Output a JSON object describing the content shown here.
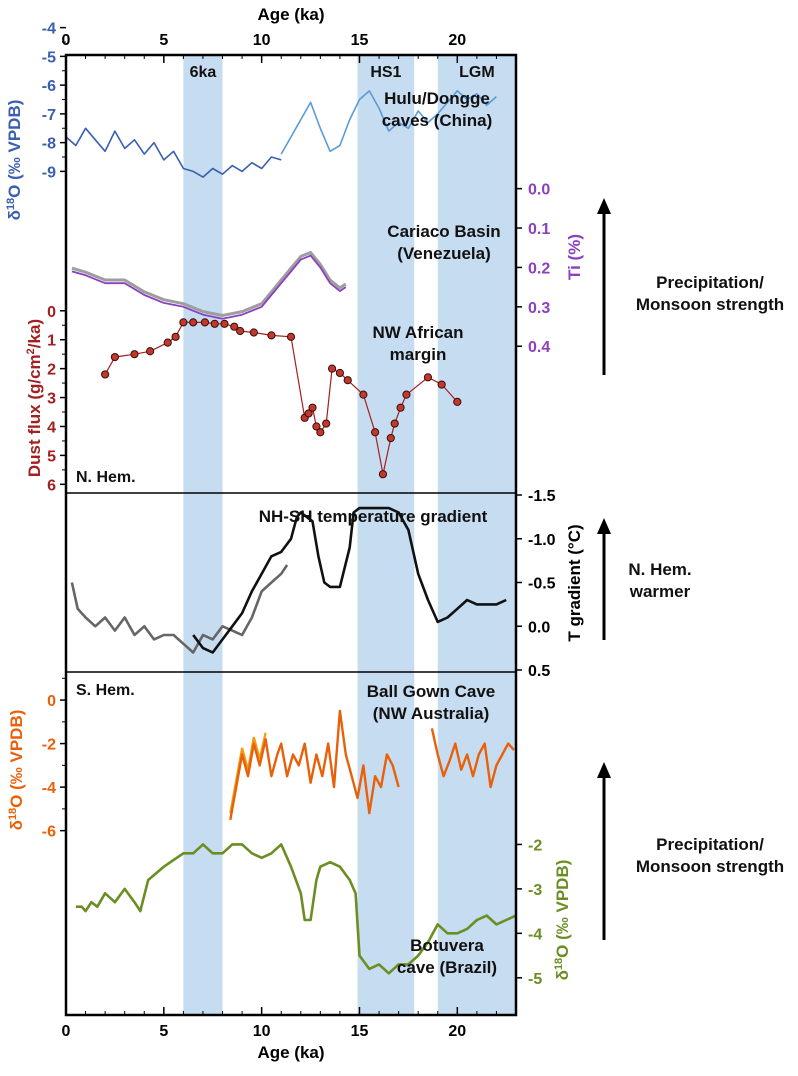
{
  "chart_data": {
    "type": "line",
    "x_axis": {
      "label": "Age (ka)",
      "range": [
        0,
        23
      ],
      "ticks": [
        0,
        5,
        10,
        15,
        20
      ],
      "minor_ticks": [
        1,
        2,
        3,
        4,
        6,
        7,
        8,
        9,
        11,
        12,
        13,
        14,
        16,
        17,
        18,
        19,
        21,
        22
      ]
    },
    "shaded_intervals": [
      {
        "label": "6ka",
        "range": [
          6,
          8
        ]
      },
      {
        "label": "HS1",
        "range": [
          14.9,
          17.8
        ]
      },
      {
        "label": "LGM",
        "range": [
          19,
          23
        ]
      }
    ],
    "panel_labels": {
      "north": "N. Hem.",
      "south": "S. Hem."
    },
    "panels": [
      {
        "id": "hulu",
        "label_lines": [
          "Hulu/Dongge",
          "caves (China)"
        ],
        "axis_label": "δ18O (‰ VPDB)",
        "axis_side": "left",
        "range": [
          -6.1,
          -9.3
        ],
        "ticks": [
          -9,
          -8,
          -7,
          -6,
          -5,
          -4
        ],
        "colors": [
          "#3a5fb0",
          "#5b9bd5"
        ],
        "series": [
          {
            "name": "Dongge",
            "x": [
              0,
              0.5,
              1,
              1.5,
              2,
              2.5,
              3,
              3.5,
              4,
              4.5,
              5,
              5.5,
              6,
              6.5,
              7,
              7.5,
              8,
              8.5,
              9,
              9.5,
              10,
              10.5,
              11
            ],
            "y": [
              -7.8,
              -8.1,
              -7.5,
              -7.9,
              -8.3,
              -7.6,
              -8.2,
              -7.9,
              -8.4,
              -8.0,
              -8.6,
              -8.3,
              -8.9,
              -9.0,
              -9.2,
              -8.9,
              -9.1,
              -8.8,
              -9.0,
              -8.7,
              -8.9,
              -8.5,
              -8.6
            ]
          },
          {
            "name": "Hulu",
            "x": [
              11,
              11.5,
              12,
              12.5,
              13,
              13.5,
              14,
              14.5,
              15,
              15.5,
              16,
              16.5,
              17,
              17.5,
              18,
              18.5,
              19,
              19.5,
              20,
              20.5,
              21,
              21.5,
              22
            ],
            "y": [
              -8.4,
              -7.8,
              -7.2,
              -6.6,
              -7.5,
              -8.3,
              -8.1,
              -7.2,
              -6.5,
              -6.2,
              -6.8,
              -7.6,
              -7.3,
              -7.5,
              -6.9,
              -7.3,
              -7.0,
              -6.6,
              -6.2,
              -6.5,
              -6.3,
              -6.7,
              -6.4
            ]
          }
        ]
      },
      {
        "id": "cariaco",
        "label_lines": [
          "Cariaco Basin",
          "(Venezuela)"
        ],
        "axis_label": "Ti (%)",
        "axis_side": "right",
        "range": [
          -0.06,
          0.44
        ],
        "ticks": [
          0.0,
          0.1,
          0.2,
          0.3,
          0.4
        ],
        "colors": [
          "#8c3fbf",
          "#9e9e9e"
        ],
        "series": [
          {
            "name": "Ti",
            "x": [
              0.3,
              1,
              2,
              3,
              4,
              5,
              6,
              7,
              8,
              9,
              10,
              10.5,
              11,
              11.5,
              12,
              12.5,
              13,
              13.5,
              14,
              14.3
            ],
            "y": [
              0.21,
              0.22,
              0.24,
              0.24,
              0.27,
              0.29,
              0.3,
              0.32,
              0.33,
              0.32,
              0.3,
              0.27,
              0.24,
              0.21,
              0.18,
              0.17,
              0.2,
              0.24,
              0.26,
              0.25
            ]
          }
        ]
      },
      {
        "id": "nwafrica",
        "label_lines": [
          "NW African",
          "margin"
        ],
        "axis_label": "Dust flux (g/cm2/ka)",
        "axis_side": "left",
        "range": [
          -0.2,
          6.3
        ],
        "ticks": [
          0,
          1,
          2,
          3,
          4,
          5,
          6
        ],
        "colors": [
          "#c0392b",
          "#a32020"
        ],
        "series": [
          {
            "name": "Dust flux",
            "x": [
              2.0,
              2.5,
              3.5,
              4.3,
              5.2,
              5.6,
              6.0,
              6.5,
              7.1,
              7.6,
              8.1,
              8.6,
              8.9,
              9.6,
              10.5,
              11.5,
              12.2,
              12.4,
              12.6,
              12.8,
              13.0,
              13.3,
              13.6,
              14.0,
              14.4,
              15.2,
              15.8,
              16.2,
              16.6,
              16.8,
              17.1,
              17.4,
              18.5,
              19.2,
              20.0
            ],
            "y": [
              2.2,
              1.6,
              1.5,
              1.4,
              1.1,
              0.9,
              0.4,
              0.4,
              0.4,
              0.45,
              0.45,
              0.55,
              0.7,
              0.75,
              0.85,
              0.9,
              3.7,
              3.55,
              3.35,
              4.0,
              4.2,
              3.9,
              2.0,
              2.15,
              2.4,
              2.9,
              4.2,
              5.65,
              4.4,
              3.9,
              3.35,
              2.9,
              2.3,
              2.55,
              3.15
            ]
          }
        ]
      },
      {
        "id": "gradient",
        "label_lines": [
          "NH-SH temperature gradient"
        ],
        "axis_label": "T gradient (°C)",
        "axis_side": "right",
        "range": [
          -1.5,
          0.5
        ],
        "ticks": [
          0.5,
          0.0,
          -0.5,
          -1.0,
          -1.5
        ],
        "colors": [
          "#666666",
          "#111111"
        ],
        "series": [
          {
            "name": "record 1",
            "x": [
              0.3,
              0.6,
              1.0,
              1.5,
              2.0,
              2.5,
              3.0,
              3.5,
              4.0,
              4.5,
              5.0,
              5.5,
              6.0,
              6.5,
              7.0,
              7.5,
              8.0,
              8.5,
              9.0,
              9.5,
              10.0,
              10.5,
              11.0,
              11.3
            ],
            "y": [
              -0.5,
              -0.2,
              -0.1,
              0.0,
              -0.1,
              0.05,
              -0.1,
              0.1,
              0.0,
              0.15,
              0.1,
              0.1,
              0.2,
              0.3,
              0.1,
              0.15,
              0.0,
              0.05,
              0.1,
              -0.1,
              -0.4,
              -0.5,
              -0.6,
              -0.7
            ]
          },
          {
            "name": "record 2",
            "x": [
              6.5,
              7.0,
              7.5,
              8.0,
              8.5,
              9.0,
              9.5,
              10.0,
              10.5,
              11.0,
              11.5,
              11.8,
              12.0,
              12.3,
              12.6,
              12.9,
              13.2,
              13.5,
              14.0,
              14.5,
              14.7,
              15.0,
              15.5,
              16.0,
              16.5,
              17.0,
              17.5,
              18.0,
              18.5,
              19.0,
              19.5,
              20.0,
              20.5,
              21.0,
              21.5,
              22.0,
              22.5
            ],
            "y": [
              0.1,
              0.25,
              0.3,
              0.15,
              0.0,
              -0.15,
              -0.4,
              -0.6,
              -0.8,
              -0.85,
              -1.0,
              -1.25,
              -1.3,
              -1.25,
              -1.2,
              -0.8,
              -0.5,
              -0.45,
              -0.45,
              -0.9,
              -1.3,
              -1.35,
              -1.35,
              -1.35,
              -1.35,
              -1.3,
              -1.1,
              -0.6,
              -0.3,
              -0.05,
              -0.1,
              -0.2,
              -0.3,
              -0.25,
              -0.25,
              -0.25,
              -0.3
            ]
          }
        ]
      },
      {
        "id": "ballgown",
        "label_lines": [
          "Ball Gown Cave",
          "(NW Australia)"
        ],
        "axis_label": "δ18O (‰ VPDB)",
        "axis_side": "left",
        "range": [
          0.6,
          -6.2
        ],
        "ticks": [
          -6,
          -4,
          -2,
          0
        ],
        "colors": [
          "#e8610a",
          "#f39c12"
        ],
        "series": [
          {
            "name": "Ball Gown Cave",
            "x": [
              8.4,
              8.7,
              9.0,
              9.3,
              9.6,
              9.9,
              10.2,
              10.5,
              10.8,
              11.0,
              11.3,
              11.6,
              11.9,
              12.2,
              12.5,
              12.8,
              13.1,
              13.4,
              13.7,
              14.0,
              14.3,
              14.6,
              14.9,
              15.2,
              15.5,
              15.8,
              16.1,
              16.4,
              16.7,
              17.0,
              18.7,
              19.0,
              19.3,
              19.6,
              19.9,
              20.2,
              20.5,
              20.8,
              21.1,
              21.4,
              21.7,
              22.0,
              22.3,
              22.6,
              22.9
            ],
            "y": [
              -5.5,
              -4.0,
              -2.5,
              -3.5,
              -2.0,
              -3.0,
              -1.8,
              -3.5,
              -2.5,
              -2.0,
              -3.5,
              -2.5,
              -3.0,
              -2.0,
              -3.8,
              -2.5,
              -3.5,
              -2.0,
              -4.0,
              -0.5,
              -2.5,
              -3.5,
              -4.5,
              -3.0,
              -5.2,
              -3.5,
              -4.0,
              -2.5,
              -3.0,
              -4.0,
              -1.3,
              -2.5,
              -3.5,
              -2.8,
              -2.0,
              -3.2,
              -2.5,
              -3.5,
              -2.5,
              -2.0,
              -4.0,
              -3.0,
              -2.5,
              -2.0,
              -2.3
            ]
          }
        ]
      },
      {
        "id": "botuvera",
        "label_lines": [
          "Botuvera",
          "cave (Brazil)"
        ],
        "axis_label": "δ18O (‰ VPDB)",
        "axis_side": "right",
        "range": [
          -1.9,
          -5.5
        ],
        "ticks": [
          -5,
          -4,
          -3,
          -2
        ],
        "colors": [
          "#6b8e23"
        ],
        "series": [
          {
            "name": "Botuvera",
            "x": [
              0.5,
              0.8,
              1.0,
              1.3,
              1.6,
              2.0,
              2.5,
              3.0,
              3.5,
              3.8,
              4.2,
              5.0,
              6.0,
              6.5,
              7.0,
              7.5,
              8.0,
              8.5,
              9.0,
              9.5,
              10.0,
              10.5,
              11.0,
              11.5,
              12.0,
              12.2,
              12.5,
              12.8,
              13.0,
              13.5,
              14.0,
              14.5,
              14.8,
              15.0,
              15.5,
              16.0,
              16.5,
              17.0,
              17.5,
              18.0,
              18.5,
              19.0,
              19.5,
              20.0,
              20.5,
              21.0,
              21.5,
              22.0,
              22.5,
              23.0
            ],
            "y": [
              -3.4,
              -3.4,
              -3.5,
              -3.3,
              -3.4,
              -3.1,
              -3.3,
              -3.0,
              -3.3,
              -3.5,
              -2.8,
              -2.5,
              -2.2,
              -2.2,
              -2.0,
              -2.2,
              -2.2,
              -2.0,
              -2.0,
              -2.2,
              -2.3,
              -2.2,
              -2.0,
              -2.5,
              -3.1,
              -3.7,
              -3.7,
              -2.8,
              -2.5,
              -2.4,
              -2.5,
              -2.8,
              -3.1,
              -4.5,
              -4.8,
              -4.7,
              -4.9,
              -4.7,
              -4.7,
              -4.5,
              -4.2,
              -3.8,
              -4.0,
              -4.0,
              -3.9,
              -3.7,
              -3.6,
              -3.8,
              -3.7,
              -3.6
            ]
          }
        ]
      }
    ],
    "arrows": [
      {
        "label_lines": [
          "Precipitation/",
          "Monsoon strength"
        ]
      },
      {
        "label_lines": [
          "N. Hem.",
          "warmer"
        ]
      },
      {
        "label_lines": [
          "Precipitation/",
          "Monsoon strength"
        ]
      }
    ],
    "colors": {
      "shade": "#c6dcf1",
      "axis": "#000000"
    }
  }
}
